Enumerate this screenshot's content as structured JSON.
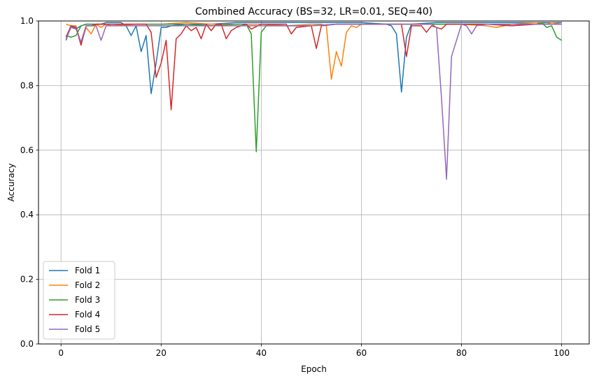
{
  "chart_data": {
    "type": "line",
    "title": "Combined Accuracy (BS=32, LR=0.01, SEQ=40)",
    "xlabel": "Epoch",
    "ylabel": "Accuracy",
    "xlim": [
      -4.5,
      105.5
    ],
    "ylim": [
      0.0,
      1.0
    ],
    "xticks": [
      0,
      20,
      40,
      60,
      80,
      100
    ],
    "yticks": [
      0.0,
      0.2,
      0.4,
      0.6,
      0.8,
      1.0
    ],
    "xtick_labels": [
      "0",
      "20",
      "40",
      "60",
      "80",
      "100"
    ],
    "ytick_labels": [
      "0.0",
      "0.2",
      "0.4",
      "0.6",
      "0.8",
      "1.0"
    ],
    "grid": true,
    "legend_position": "lower-left",
    "series": [
      {
        "name": "Fold 1",
        "color": "#1f77b4",
        "points": [
          [
            1,
            0.94
          ],
          [
            2,
            0.985
          ],
          [
            3,
            0.975
          ],
          [
            4,
            0.985
          ],
          [
            5,
            0.99
          ],
          [
            6,
            0.99
          ],
          [
            7,
            0.99
          ],
          [
            8,
            0.99
          ],
          [
            9,
            0.995
          ],
          [
            10,
            0.995
          ],
          [
            12,
            0.995
          ],
          [
            13,
            0.985
          ],
          [
            14,
            0.955
          ],
          [
            15,
            0.985
          ],
          [
            16,
            0.905
          ],
          [
            17,
            0.955
          ],
          [
            18,
            0.775
          ],
          [
            19,
            0.87
          ],
          [
            20,
            0.98
          ],
          [
            21,
            0.98
          ],
          [
            22,
            0.985
          ],
          [
            25,
            0.99
          ],
          [
            30,
            0.99
          ],
          [
            35,
            0.995
          ],
          [
            40,
            0.995
          ],
          [
            45,
            0.995
          ],
          [
            50,
            0.995
          ],
          [
            55,
            0.995
          ],
          [
            60,
            0.995
          ],
          [
            65,
            0.99
          ],
          [
            66,
            0.985
          ],
          [
            67,
            0.96
          ],
          [
            68,
            0.78
          ],
          [
            69,
            0.95
          ],
          [
            70,
            0.99
          ],
          [
            75,
            0.995
          ],
          [
            80,
            0.995
          ],
          [
            85,
            0.995
          ],
          [
            90,
            0.995
          ],
          [
            95,
            0.995
          ],
          [
            100,
            0.995
          ]
        ]
      },
      {
        "name": "Fold 2",
        "color": "#ff7f0e",
        "points": [
          [
            1,
            0.99
          ],
          [
            2,
            0.985
          ],
          [
            3,
            0.985
          ],
          [
            4,
            0.93
          ],
          [
            5,
            0.98
          ],
          [
            6,
            0.96
          ],
          [
            7,
            0.99
          ],
          [
            8,
            0.98
          ],
          [
            9,
            0.99
          ],
          [
            10,
            0.985
          ],
          [
            15,
            0.99
          ],
          [
            20,
            0.99
          ],
          [
            25,
            0.995
          ],
          [
            30,
            0.99
          ],
          [
            35,
            0.99
          ],
          [
            40,
            0.99
          ],
          [
            45,
            0.985
          ],
          [
            50,
            0.99
          ],
          [
            52,
            0.99
          ],
          [
            53,
            0.985
          ],
          [
            54,
            0.82
          ],
          [
            55,
            0.905
          ],
          [
            56,
            0.86
          ],
          [
            57,
            0.965
          ],
          [
            58,
            0.985
          ],
          [
            59,
            0.98
          ],
          [
            60,
            0.99
          ],
          [
            65,
            0.99
          ],
          [
            70,
            0.99
          ],
          [
            75,
            0.99
          ],
          [
            80,
            0.99
          ],
          [
            85,
            0.985
          ],
          [
            87,
            0.98
          ],
          [
            90,
            0.99
          ],
          [
            95,
            0.995
          ],
          [
            97,
            0.99
          ],
          [
            98,
            0.995
          ],
          [
            100,
            0.99
          ]
        ]
      },
      {
        "name": "Fold 3",
        "color": "#2ca02c",
        "points": [
          [
            1,
            0.955
          ],
          [
            2,
            0.95
          ],
          [
            3,
            0.955
          ],
          [
            4,
            0.985
          ],
          [
            5,
            0.99
          ],
          [
            7,
            0.99
          ],
          [
            10,
            0.99
          ],
          [
            15,
            0.99
          ],
          [
            20,
            0.99
          ],
          [
            25,
            0.99
          ],
          [
            30,
            0.985
          ],
          [
            35,
            0.99
          ],
          [
            37,
            0.99
          ],
          [
            38,
            0.96
          ],
          [
            39,
            0.595
          ],
          [
            40,
            0.965
          ],
          [
            41,
            0.985
          ],
          [
            45,
            0.985
          ],
          [
            50,
            0.985
          ],
          [
            55,
            0.99
          ],
          [
            60,
            0.99
          ],
          [
            65,
            0.99
          ],
          [
            70,
            0.99
          ],
          [
            75,
            0.99
          ],
          [
            80,
            0.99
          ],
          [
            85,
            0.99
          ],
          [
            90,
            0.99
          ],
          [
            95,
            0.99
          ],
          [
            96,
            0.995
          ],
          [
            97,
            0.98
          ],
          [
            98,
            0.985
          ],
          [
            99,
            0.95
          ],
          [
            100,
            0.94
          ]
        ]
      },
      {
        "name": "Fold 4",
        "color": "#d62728",
        "points": [
          [
            1,
            0.95
          ],
          [
            2,
            0.985
          ],
          [
            3,
            0.98
          ],
          [
            4,
            0.925
          ],
          [
            5,
            0.985
          ],
          [
            6,
            0.985
          ],
          [
            7,
            0.99
          ],
          [
            10,
            0.99
          ],
          [
            15,
            0.99
          ],
          [
            17,
            0.99
          ],
          [
            18,
            0.965
          ],
          [
            19,
            0.825
          ],
          [
            20,
            0.87
          ],
          [
            21,
            0.94
          ],
          [
            22,
            0.725
          ],
          [
            23,
            0.945
          ],
          [
            24,
            0.96
          ],
          [
            25,
            0.985
          ],
          [
            26,
            0.97
          ],
          [
            27,
            0.98
          ],
          [
            28,
            0.945
          ],
          [
            29,
            0.99
          ],
          [
            30,
            0.97
          ],
          [
            31,
            0.99
          ],
          [
            32,
            0.99
          ],
          [
            33,
            0.945
          ],
          [
            34,
            0.97
          ],
          [
            35,
            0.98
          ],
          [
            36,
            0.985
          ],
          [
            37,
            0.99
          ],
          [
            38,
            0.975
          ],
          [
            40,
            0.99
          ],
          [
            45,
            0.99
          ],
          [
            46,
            0.96
          ],
          [
            47,
            0.98
          ],
          [
            50,
            0.985
          ],
          [
            51,
            0.915
          ],
          [
            52,
            0.985
          ],
          [
            55,
            0.99
          ],
          [
            60,
            0.99
          ],
          [
            65,
            0.99
          ],
          [
            68,
            0.99
          ],
          [
            69,
            0.89
          ],
          [
            70,
            0.985
          ],
          [
            72,
            0.985
          ],
          [
            73,
            0.965
          ],
          [
            74,
            0.985
          ],
          [
            76,
            0.975
          ],
          [
            77,
            0.99
          ],
          [
            80,
            0.99
          ],
          [
            85,
            0.99
          ],
          [
            90,
            0.985
          ],
          [
            95,
            0.99
          ],
          [
            100,
            0.99
          ]
        ]
      },
      {
        "name": "Fold 5",
        "color": "#9467bd",
        "points": [
          [
            1,
            0.945
          ],
          [
            2,
            0.98
          ],
          [
            3,
            0.975
          ],
          [
            4,
            0.935
          ],
          [
            5,
            0.985
          ],
          [
            6,
            0.985
          ],
          [
            7,
            0.985
          ],
          [
            8,
            0.94
          ],
          [
            9,
            0.985
          ],
          [
            10,
            0.985
          ],
          [
            15,
            0.985
          ],
          [
            20,
            0.985
          ],
          [
            25,
            0.985
          ],
          [
            30,
            0.985
          ],
          [
            35,
            0.985
          ],
          [
            40,
            0.985
          ],
          [
            45,
            0.985
          ],
          [
            50,
            0.985
          ],
          [
            55,
            0.99
          ],
          [
            60,
            0.99
          ],
          [
            65,
            0.99
          ],
          [
            70,
            0.99
          ],
          [
            74,
            0.99
          ],
          [
            75,
            0.98
          ],
          [
            76,
            0.76
          ],
          [
            77,
            0.51
          ],
          [
            78,
            0.89
          ],
          [
            79,
            0.94
          ],
          [
            80,
            0.99
          ],
          [
            81,
            0.985
          ],
          [
            82,
            0.96
          ],
          [
            83,
            0.985
          ],
          [
            85,
            0.99
          ],
          [
            90,
            0.99
          ],
          [
            95,
            0.99
          ],
          [
            100,
            0.99
          ]
        ]
      }
    ]
  }
}
